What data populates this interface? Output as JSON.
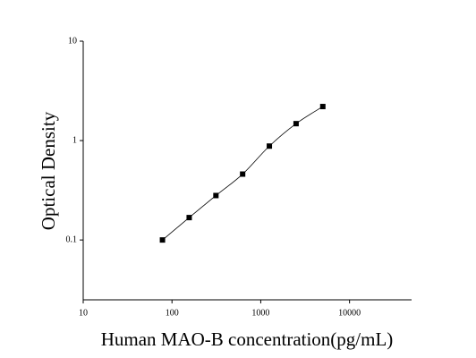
{
  "chart_data": {
    "type": "scatter",
    "x_label": "Human MAO-B concentration(pg/mL)",
    "y_label": "Optical Density",
    "x": [
      78.125,
      156.25,
      312.5,
      625,
      1250,
      2500,
      5000
    ],
    "series": [
      {
        "name": "OD",
        "color": "#000000",
        "values": [
          0.1,
          0.168,
          0.28,
          0.46,
          0.88,
          1.48,
          2.2
        ]
      }
    ],
    "xlim": [
      10,
      50000
    ],
    "ylim": [
      0.025,
      10
    ],
    "xticks": [
      10,
      100,
      1000,
      10000
    ],
    "yticks": [
      0.1,
      1,
      10
    ],
    "log_x": true,
    "log_y": true,
    "fit_line": true
  }
}
